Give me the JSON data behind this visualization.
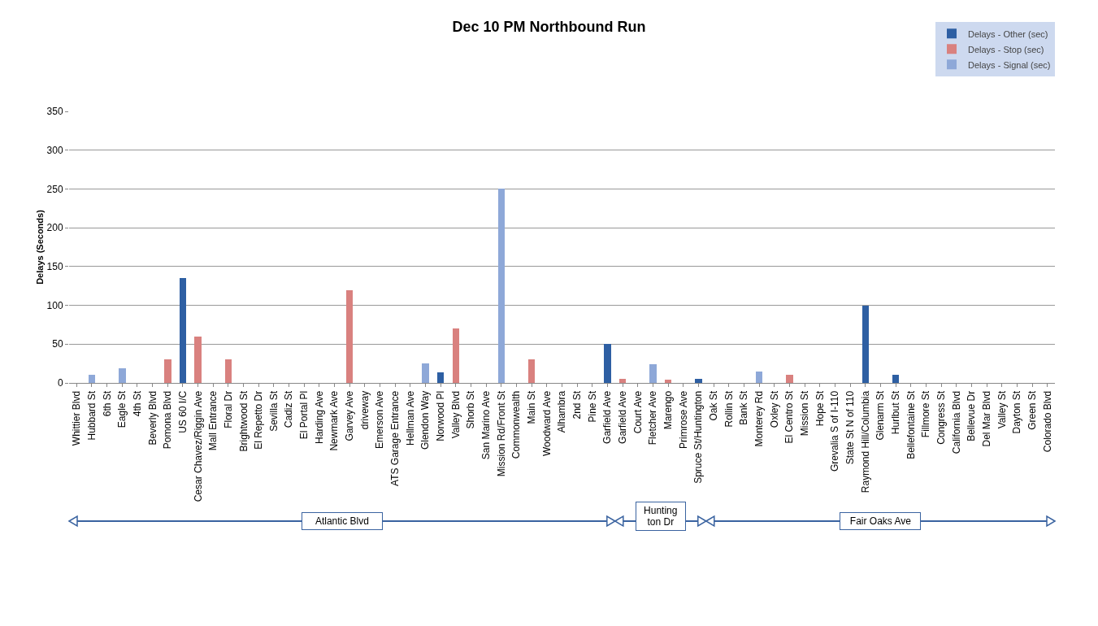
{
  "chart_data": {
    "type": "bar",
    "title": "Dec 10 PM Northbound Run",
    "ylabel": "Delays (Seconds)",
    "stacked": true,
    "grid": "y",
    "legend": "top right",
    "ylim": [
      0,
      350
    ],
    "yticks": [
      0,
      50,
      100,
      150,
      200,
      250,
      300,
      350
    ],
    "categories": [
      "Whittier Blvd",
      "Hubbard St",
      "6th St",
      "Eagle St",
      "4th St",
      "Beverly Blvd",
      "Pomona Blvd",
      "US 60 I/C",
      "Cesar Chavez/Riggin Ave",
      "Mall Entrance",
      "Floral Dr",
      "Brightwood St",
      "El Repetto Dr",
      "Sevilla St",
      "Cadiz St",
      "El Portal Pl",
      "Harding Ave",
      "Newmark Ave",
      "Garvey Ave",
      "driveway",
      "Emerson Ave",
      "ATS Garage Entrance",
      "Hellman Ave",
      "Glendon Way",
      "Norwood Pl",
      "Valley Blvd",
      "Shorb St",
      "San Marino Ave",
      "Mission Rd/Front St",
      "Commonwealth",
      "Main St",
      "Woodward Ave",
      "Alhambra",
      "2nd St",
      "Pine St",
      "Garfield Ave",
      "Garfield Ave",
      "Court Ave",
      "Fletcher Ave",
      "Marengo",
      "Primrose Ave",
      "Spruce St/Huntington",
      "Oak St",
      "Rollin St",
      "Bank St",
      "Monterey Rd",
      "Oxley St",
      "El Centro St",
      "Mission St",
      "Hope St",
      "Grevalia S of I-110",
      "State St N of 110",
      "Raymond Hill/Columbia",
      "Glenarm St",
      "Hurlbut St",
      "Bellefontaine St",
      "Fillmore St",
      "Congress St",
      "California Blvd",
      "Bellevue Dr",
      "Del Mar Blvd",
      "Valley St",
      "Dayton St",
      "Green St",
      "Colorado Blvd"
    ],
    "series": [
      {
        "name": "Delays - Other (sec)",
        "color": "#2e5fa3",
        "values": [
          null,
          null,
          null,
          null,
          null,
          null,
          null,
          135,
          null,
          null,
          null,
          null,
          null,
          null,
          null,
          null,
          null,
          null,
          null,
          null,
          null,
          null,
          null,
          null,
          14,
          null,
          null,
          null,
          null,
          null,
          null,
          null,
          null,
          null,
          null,
          50,
          null,
          null,
          null,
          null,
          null,
          5,
          null,
          null,
          null,
          null,
          null,
          null,
          null,
          null,
          null,
          null,
          100,
          null,
          10,
          null,
          null,
          null,
          null,
          null,
          null,
          null,
          null,
          null,
          null
        ]
      },
      {
        "name": "Delays - Stop (sec)",
        "color": "#d9817f",
        "values": [
          null,
          null,
          null,
          null,
          null,
          null,
          30,
          null,
          60,
          null,
          30,
          null,
          null,
          null,
          null,
          null,
          null,
          null,
          119,
          null,
          null,
          null,
          null,
          null,
          null,
          70,
          null,
          null,
          null,
          null,
          30,
          null,
          null,
          null,
          null,
          null,
          5,
          null,
          null,
          4,
          null,
          null,
          null,
          null,
          null,
          null,
          null,
          10,
          null,
          null,
          null,
          null,
          null,
          null,
          null,
          null,
          null,
          null,
          null,
          null,
          null,
          null,
          null,
          null,
          null
        ]
      },
      {
        "name": "Delays - Signal (sec)",
        "color": "#8ea8d8",
        "values": [
          null,
          10,
          null,
          19,
          null,
          null,
          null,
          null,
          null,
          null,
          null,
          null,
          null,
          null,
          null,
          null,
          null,
          null,
          null,
          null,
          null,
          null,
          null,
          25,
          null,
          null,
          null,
          null,
          250,
          null,
          null,
          null,
          null,
          null,
          null,
          null,
          null,
          null,
          24,
          null,
          null,
          null,
          null,
          null,
          null,
          15,
          null,
          null,
          null,
          null,
          null,
          null,
          null,
          null,
          null,
          null,
          null,
          null,
          null,
          null,
          null,
          null,
          null,
          null,
          null
        ]
      }
    ],
    "annotations": [
      "Atlantic Blvd",
      "Hunting ton Dr",
      "Fair Oaks Ave"
    ]
  }
}
